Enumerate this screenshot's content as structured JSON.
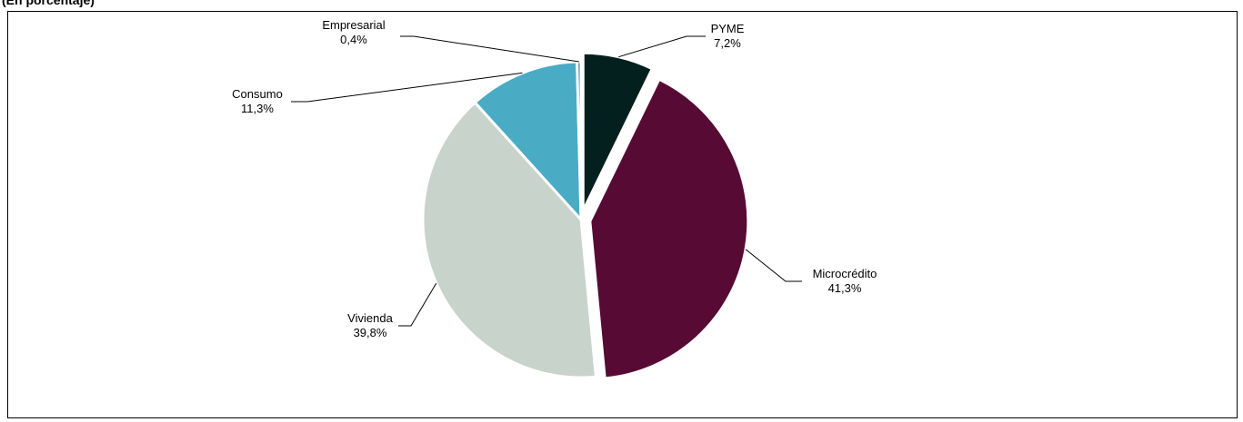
{
  "subtitle": "(En porcentaje)",
  "chart_data": {
    "type": "pie",
    "title": "",
    "slices": [
      {
        "name": "PYME",
        "value": 7.2,
        "label": "7,2%",
        "color": "#03201f",
        "exploded": true
      },
      {
        "name": "Microcrédito",
        "value": 41.3,
        "label": "41,3%",
        "color": "#570a33",
        "exploded": true
      },
      {
        "name": "Vivienda",
        "value": 39.8,
        "label": "39,8%",
        "color": "#c8d3cc",
        "exploded": false
      },
      {
        "name": "Consumo",
        "value": 11.3,
        "label": "11,3%",
        "color": "#4aabc5",
        "exploded": false
      },
      {
        "name": "Empresarial",
        "value": 0.4,
        "label": "0,4%",
        "color": "#4a7db5",
        "exploded": false
      }
    ],
    "start_angle": "12 o'clock",
    "direction": "clockwise",
    "legend": "none (leader-line labels)"
  }
}
